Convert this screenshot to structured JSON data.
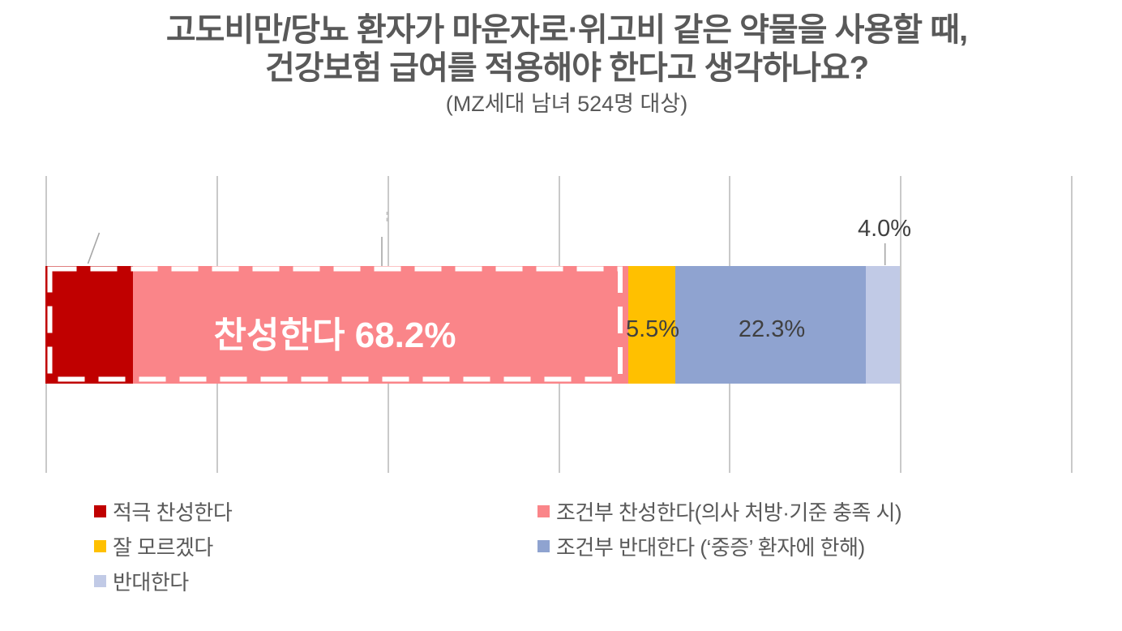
{
  "title": {
    "line1": "고도비만/당뇨 환자가 마운자로·위고비 같은 약물을 사용할 때,",
    "line2": "건강보험 급여를 적용해야 한다고 생각하나요?",
    "subtitle": "(MZ세대 남녀 524명 대상)"
  },
  "colors": {
    "strongly_agree": "#c00000",
    "cond_agree": "#fa8589",
    "unsure": "#ffc000",
    "cond_oppose": "#8fa3d0",
    "oppose": "#c1cae6",
    "gridline": "#c9c9c9",
    "label_text": "#404040",
    "title_text": "#595959",
    "callout_line": "#a6a6a6",
    "group_box_stroke": "#ffffff"
  },
  "chart_data": {
    "type": "bar",
    "variant": "horizontal-stacked-single-bar",
    "title": "고도비만/당뇨 환자가 마운자로·위고비 같은 약물을 사용할 때, 건강보험 급여를 적용해야 한다고 생각하나요?",
    "subtitle": "(MZ세대 남녀 524명 대상)",
    "sample": "MZ세대 남녀 524명",
    "xlim": [
      0,
      120
    ],
    "gridline_step": 20,
    "axis_tick_labels_shown": false,
    "legend_position": "bottom, two columns",
    "series": [
      {
        "name": "적극 찬성한다",
        "value": 10.2,
        "color": "#c00000",
        "label_shown": ""
      },
      {
        "name": "조건부 찬성한다(의사 처방·기준 충족 시)",
        "value": 58.0,
        "color": "#fa8589",
        "label_shown": ""
      },
      {
        "name": "잘 모르겠다",
        "value": 5.5,
        "color": "#ffc000",
        "label_shown": "5.5%"
      },
      {
        "name": "조건부 반대한다 (‘중증’ 환자에 한해)",
        "value": 22.3,
        "color": "#8fa3d0",
        "label_shown": "22.3%"
      },
      {
        "name": "반대한다",
        "value": 4.0,
        "color": "#c1cae6",
        "label_shown": "4.0%"
      }
    ],
    "group_annotation": {
      "text": "찬성한다 68.2%",
      "total": 68.2,
      "covers": [
        "적극 찬성한다",
        "조건부 찬성한다(의사 처방·기준 충족 시)"
      ],
      "style": "white dashed rectangle around first two segments"
    }
  },
  "legend": {
    "columns": [
      {
        "items": [
          {
            "key": "strongly-agree",
            "label": "적극 찬성한다",
            "color": "#c00000"
          },
          {
            "key": "unsure",
            "label": "잘 모르겠다",
            "color": "#ffc000"
          },
          {
            "key": "oppose",
            "label": "반대한다",
            "color": "#c1cae6"
          }
        ]
      },
      {
        "items": [
          {
            "key": "cond-agree",
            "label": "조건부 찬성한다(의사 처방·기준 충족 시)",
            "color": "#fa8589"
          },
          {
            "key": "cond-oppose",
            "label": "조건부 반대한다 (‘중증’ 환자에 한해)",
            "color": "#8fa3d0"
          }
        ]
      }
    ]
  }
}
